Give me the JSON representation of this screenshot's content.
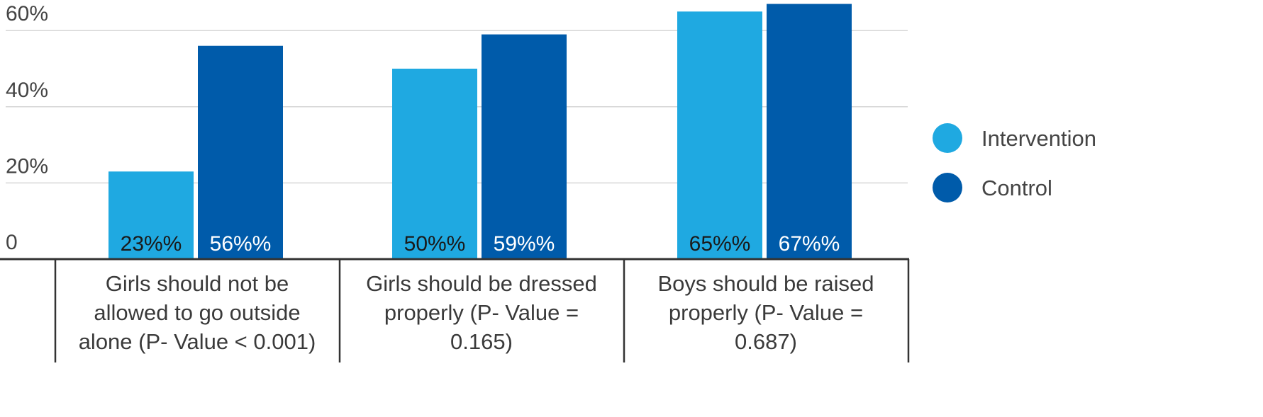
{
  "chart_data": {
    "type": "bar",
    "title": "",
    "xlabel": "",
    "ylabel": "",
    "categories": [
      [
        "Girls should not be",
        "allowed to go outside",
        "alone (P- Value < 0.001)"
      ],
      [
        "Girls should be dressed",
        "properly (P- Value =",
        "0.165)"
      ],
      [
        "Boys should be raised",
        "properly (P- Value =",
        "0.687)"
      ]
    ],
    "series": [
      {
        "name": "Intervention",
        "values": [
          23,
          50,
          65
        ],
        "labels": [
          "23%%",
          "50%%",
          "65%%"
        ],
        "color": "#1fa9e1",
        "label_color": "#1a1a1a"
      },
      {
        "name": "Control",
        "values": [
          56,
          59,
          67
        ],
        "labels": [
          "56%%",
          "59%%",
          "67%%"
        ],
        "color": "#005baa",
        "label_color": "#ffffff"
      }
    ],
    "yticks": [
      {
        "value": 0,
        "label": "0"
      },
      {
        "value": 20,
        "label": "20%"
      },
      {
        "value": 40,
        "label": "40%"
      },
      {
        "value": 60,
        "label": "60%"
      }
    ],
    "ylim": [
      0,
      67
    ],
    "grid": true,
    "legend_position": "right"
  }
}
